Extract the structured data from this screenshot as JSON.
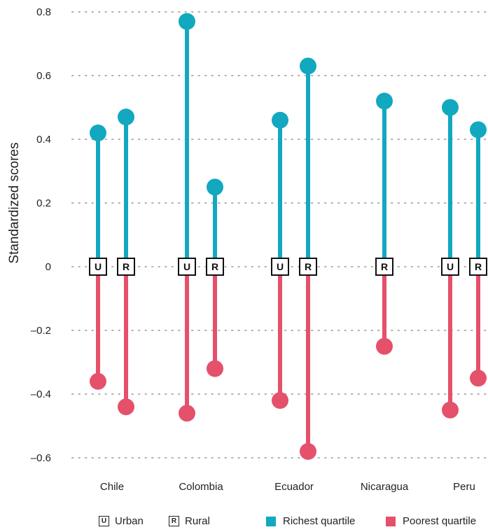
{
  "chart_data": {
    "type": "dumbbell",
    "ylabel": "Standardized scores",
    "ylim": [
      -0.6,
      0.8
    ],
    "yticks": [
      0.8,
      0.6,
      0.4,
      0.2,
      0,
      -0.2,
      -0.4,
      -0.6
    ],
    "ytick_labels": [
      "0.8",
      "0.6",
      "0.4",
      "0.2",
      "0",
      "–0.2",
      "–0.4",
      "–0.6"
    ],
    "grid": true,
    "categories": [
      "Chile",
      "Colombia",
      "Ecuador",
      "Nicaragua",
      "Peru"
    ],
    "area_labels": {
      "urban": "U",
      "rural": "R"
    },
    "series": [
      {
        "name": "Richest quartile",
        "color": "#12a8c0",
        "values": [
          {
            "country": "Chile",
            "area": "urban",
            "value": 0.42
          },
          {
            "country": "Chile",
            "area": "rural",
            "value": 0.47
          },
          {
            "country": "Colombia",
            "area": "urban",
            "value": 0.77
          },
          {
            "country": "Colombia",
            "area": "rural",
            "value": 0.25
          },
          {
            "country": "Ecuador",
            "area": "urban",
            "value": 0.46
          },
          {
            "country": "Ecuador",
            "area": "rural",
            "value": 0.63
          },
          {
            "country": "Nicaragua",
            "area": "rural",
            "value": 0.52
          },
          {
            "country": "Peru",
            "area": "urban",
            "value": 0.5
          },
          {
            "country": "Peru",
            "area": "rural",
            "value": 0.43
          }
        ]
      },
      {
        "name": "Poorest quartile",
        "color": "#e5506b",
        "values": [
          {
            "country": "Chile",
            "area": "urban",
            "value": -0.36
          },
          {
            "country": "Chile",
            "area": "rural",
            "value": -0.44
          },
          {
            "country": "Colombia",
            "area": "urban",
            "value": -0.46
          },
          {
            "country": "Colombia",
            "area": "rural",
            "value": -0.32
          },
          {
            "country": "Ecuador",
            "area": "urban",
            "value": -0.42
          },
          {
            "country": "Ecuador",
            "area": "rural",
            "value": -0.58
          },
          {
            "country": "Nicaragua",
            "area": "rural",
            "value": -0.25
          },
          {
            "country": "Peru",
            "area": "urban",
            "value": -0.45
          },
          {
            "country": "Peru",
            "area": "rural",
            "value": -0.35
          }
        ]
      }
    ],
    "legend": {
      "position": "bottom",
      "urban_label": "Urban",
      "rural_label": "Rural",
      "rich_label": "Richest quartile",
      "poor_label": "Poorest quartile"
    }
  }
}
